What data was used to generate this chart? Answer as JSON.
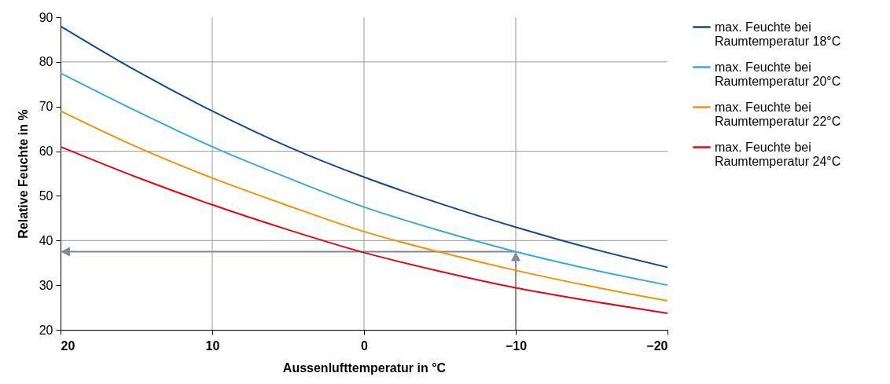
{
  "chart_data": {
    "type": "line",
    "xlabel": "Aussenlufttemperatur in °C",
    "ylabel": "Relative Feuchte in %",
    "x": [
      20,
      15,
      10,
      5,
      0,
      -5,
      -10,
      -15,
      -20
    ],
    "series": [
      {
        "name": "max. Feuchte bei Raumtemperatur 18°C",
        "color": "#0f4a92",
        "values": [
          88,
          78,
          69,
          61,
          54.2,
          48.3,
          43,
          38.2,
          34
        ]
      },
      {
        "name": "max. Feuchte bei Raumtemperatur 20°C",
        "color": "#36a9e1",
        "values": [
          77.5,
          69,
          61,
          54,
          47.5,
          42.2,
          37.5,
          33.5,
          30
        ]
      },
      {
        "name": "max. Feuchte bei Raumtemperatur 22°C",
        "color": "#f39200",
        "values": [
          69,
          61,
          54,
          47.8,
          42,
          37.4,
          33.3,
          29.7,
          26.5
        ]
      },
      {
        "name": "max. Feuchte bei Raumtemperatur 24°C",
        "color": "#e30613",
        "values": [
          61,
          54.2,
          48,
          42.4,
          37.3,
          33.1,
          29.4,
          26.4,
          23.7
        ]
      }
    ],
    "xlim": [
      20,
      -20
    ],
    "xticks": [
      20,
      10,
      0,
      {
        "value": -10,
        "label": "−10"
      },
      {
        "value": -20,
        "label": "−20"
      }
    ],
    "ylim": [
      20,
      90
    ],
    "yticks": [
      20,
      30,
      40,
      50,
      60,
      70,
      80,
      90
    ],
    "grid": true,
    "legend": "right"
  }
}
